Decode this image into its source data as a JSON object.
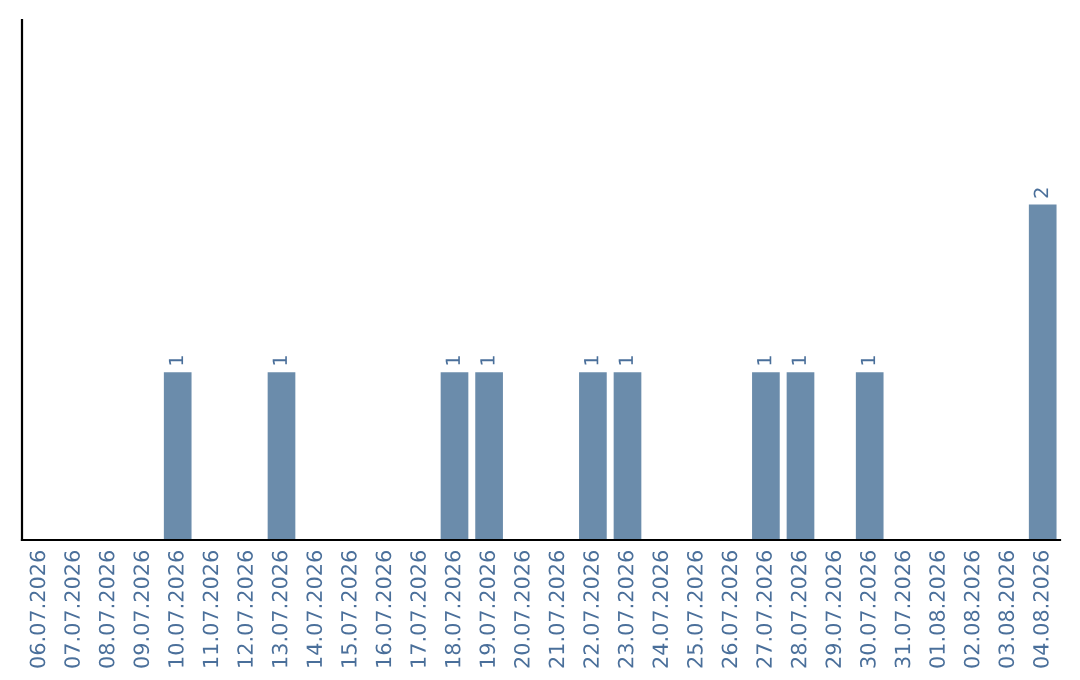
{
  "chart_data": {
    "type": "bar",
    "categories": [
      "06.07.2026",
      "07.07.2026",
      "08.07.2026",
      "09.07.2026",
      "10.07.2026",
      "11.07.2026",
      "12.07.2026",
      "13.07.2026",
      "14.07.2026",
      "15.07.2026",
      "16.07.2026",
      "17.07.2026",
      "18.07.2026",
      "19.07.2026",
      "20.07.2026",
      "21.07.2026",
      "22.07.2026",
      "23.07.2026",
      "24.07.2026",
      "25.07.2026",
      "26.07.2026",
      "27.07.2026",
      "28.07.2026",
      "29.07.2026",
      "30.07.2026",
      "31.07.2026",
      "01.08.2026",
      "02.08.2026",
      "03.08.2026",
      "04.08.2026"
    ],
    "values": [
      0,
      0,
      0,
      0,
      1,
      0,
      0,
      1,
      0,
      0,
      0,
      0,
      1,
      1,
      0,
      0,
      1,
      1,
      0,
      0,
      0,
      1,
      1,
      0,
      1,
      0,
      0,
      0,
      0,
      2
    ],
    "value_labels": [
      null,
      null,
      null,
      null,
      "1",
      null,
      null,
      "1",
      null,
      null,
      null,
      null,
      "1",
      "1",
      null,
      null,
      "1",
      "1",
      null,
      null,
      null,
      "1",
      "1",
      null,
      "1",
      null,
      null,
      null,
      null,
      "2"
    ],
    "color": "#6b8cab",
    "ylim": [
      0,
      3.1
    ],
    "tick_labels": "x",
    "grid": false,
    "legend": false
  }
}
